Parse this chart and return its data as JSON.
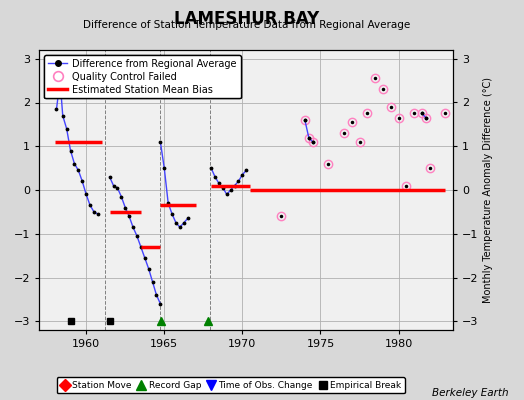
{
  "title": "LAMESHUR BAY",
  "subtitle": "Difference of Station Temperature Data from Regional Average",
  "ylabel": "Monthly Temperature Anomaly Difference (°C)",
  "xlim": [
    1957.0,
    1983.5
  ],
  "ylim": [
    -3.2,
    3.2
  ],
  "xticks": [
    1960,
    1965,
    1970,
    1975,
    1980
  ],
  "yticks": [
    -3,
    -2,
    -1,
    0,
    1,
    2,
    3
  ],
  "bg_color": "#d8d8d8",
  "plot_bg_color": "#f0f0f0",
  "grid_color": "#b0b0b0",
  "watermark": "Berkeley Earth",
  "blue_line_segments": [
    [
      [
        1958.1,
        1.85
      ],
      [
        1958.33,
        2.5
      ],
      [
        1958.5,
        1.7
      ],
      [
        1958.75,
        1.4
      ],
      [
        1959.0,
        0.9
      ],
      [
        1959.25,
        0.6
      ],
      [
        1959.5,
        0.45
      ],
      [
        1959.75,
        0.2
      ],
      [
        1960.0,
        -0.1
      ],
      [
        1960.25,
        -0.35
      ],
      [
        1960.5,
        -0.5
      ],
      [
        1960.75,
        -0.55
      ]
    ],
    [
      [
        1961.5,
        0.3
      ],
      [
        1961.75,
        0.1
      ],
      [
        1962.0,
        0.05
      ],
      [
        1962.25,
        -0.15
      ],
      [
        1962.5,
        -0.4
      ],
      [
        1962.75,
        -0.6
      ],
      [
        1963.0,
        -0.85
      ],
      [
        1963.25,
        -1.05
      ],
      [
        1963.5,
        -1.3
      ],
      [
        1963.75,
        -1.55
      ],
      [
        1964.0,
        -1.8
      ],
      [
        1964.25,
        -2.1
      ],
      [
        1964.5,
        -2.4
      ],
      [
        1964.75,
        -2.6
      ]
    ],
    [
      [
        1964.75,
        1.1
      ],
      [
        1965.0,
        0.5
      ],
      [
        1965.25,
        -0.3
      ],
      [
        1965.5,
        -0.55
      ],
      [
        1965.75,
        -0.75
      ],
      [
        1966.0,
        -0.85
      ],
      [
        1966.25,
        -0.75
      ],
      [
        1966.5,
        -0.65
      ]
    ],
    [
      [
        1968.0,
        0.5
      ],
      [
        1968.25,
        0.3
      ],
      [
        1968.5,
        0.15
      ],
      [
        1968.75,
        0.05
      ],
      [
        1969.0,
        -0.1
      ],
      [
        1969.25,
        0.0
      ],
      [
        1969.5,
        0.1
      ],
      [
        1969.75,
        0.2
      ],
      [
        1970.0,
        0.35
      ],
      [
        1970.25,
        0.45
      ]
    ],
    [
      [
        1974.0,
        1.6
      ],
      [
        1974.25,
        1.2
      ],
      [
        1974.5,
        1.1
      ]
    ],
    [
      [
        1981.5,
        1.75
      ],
      [
        1981.75,
        1.65
      ]
    ]
  ],
  "bias_segments": [
    {
      "x": [
        1958.0,
        1961.0
      ],
      "y": [
        1.1,
        1.1
      ]
    },
    {
      "x": [
        1961.5,
        1963.5
      ],
      "y": [
        -0.5,
        -0.5
      ]
    },
    {
      "x": [
        1963.5,
        1964.75
      ],
      "y": [
        -1.3,
        -1.3
      ]
    },
    {
      "x": [
        1964.75,
        1967.0
      ],
      "y": [
        -0.35,
        -0.35
      ]
    },
    {
      "x": [
        1968.0,
        1970.5
      ],
      "y": [
        0.1,
        0.1
      ]
    },
    {
      "x": [
        1970.5,
        1983.0
      ],
      "y": [
        0.0,
        0.0
      ]
    }
  ],
  "qc_failed_points": [
    [
      1972.5,
      -0.6
    ],
    [
      1974.0,
      1.6
    ],
    [
      1974.25,
      1.2
    ],
    [
      1974.5,
      1.1
    ],
    [
      1975.5,
      0.6
    ],
    [
      1976.5,
      1.3
    ],
    [
      1977.0,
      1.55
    ],
    [
      1977.5,
      1.1
    ],
    [
      1978.0,
      1.75
    ],
    [
      1978.5,
      2.55
    ],
    [
      1979.0,
      2.3
    ],
    [
      1979.5,
      1.9
    ],
    [
      1980.0,
      1.65
    ],
    [
      1980.5,
      0.1
    ],
    [
      1981.0,
      1.75
    ],
    [
      1981.5,
      1.75
    ],
    [
      1981.75,
      1.65
    ],
    [
      1982.0,
      0.5
    ],
    [
      1983.0,
      1.75
    ]
  ],
  "empirical_breaks": [
    1959.0,
    1961.5
  ],
  "record_gaps": [
    1964.8,
    1967.8
  ],
  "time_of_obs_changes": [],
  "station_moves": [],
  "vlines": [
    1961.2,
    1964.75,
    1967.9
  ]
}
